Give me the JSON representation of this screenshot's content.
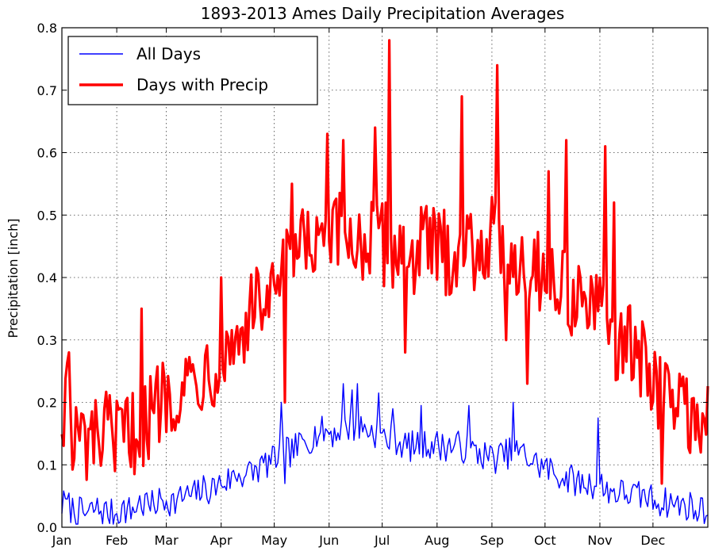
{
  "chart_data": {
    "type": "line",
    "title": "1893-2013 Ames Daily Precipitation Averages",
    "xlabel": "",
    "ylabel": "Precipitation [inch]",
    "xlim": [
      1,
      366
    ],
    "ylim": [
      0,
      0.8
    ],
    "yticks": [
      "0.0",
      "0.1",
      "0.2",
      "0.3",
      "0.4",
      "0.5",
      "0.6",
      "0.7",
      "0.8"
    ],
    "xticks": [
      {
        "label": "Jan",
        "day": 1
      },
      {
        "label": "Feb",
        "day": 32
      },
      {
        "label": "Mar",
        "day": 60
      },
      {
        "label": "Apr",
        "day": 91
      },
      {
        "label": "May",
        "day": 121
      },
      {
        "label": "Jun",
        "day": 152
      },
      {
        "label": "Jul",
        "day": 182
      },
      {
        "label": "Aug",
        "day": 213
      },
      {
        "label": "Sep",
        "day": 244
      },
      {
        "label": "Oct",
        "day": 274
      },
      {
        "label": "Nov",
        "day": 305
      },
      {
        "label": "Dec",
        "day": 335
      }
    ],
    "grid": true,
    "legend_position": "top-left",
    "series": [
      {
        "name": "All Days",
        "color": "#0000ff",
        "line_width": "thin",
        "anchors": [
          [
            1,
            0.035
          ],
          [
            3,
            0.04
          ],
          [
            6,
            0.03
          ],
          [
            10,
            0.025
          ],
          [
            15,
            0.02
          ],
          [
            20,
            0.03
          ],
          [
            25,
            0.025
          ],
          [
            30,
            0.02
          ],
          [
            35,
            0.03
          ],
          [
            40,
            0.025
          ],
          [
            45,
            0.04
          ],
          [
            50,
            0.03
          ],
          [
            55,
            0.04
          ],
          [
            60,
            0.045
          ],
          [
            65,
            0.04
          ],
          [
            70,
            0.05
          ],
          [
            75,
            0.05
          ],
          [
            80,
            0.06
          ],
          [
            85,
            0.06
          ],
          [
            90,
            0.07
          ],
          [
            95,
            0.075
          ],
          [
            100,
            0.085
          ],
          [
            105,
            0.085
          ],
          [
            110,
            0.09
          ],
          [
            115,
            0.1
          ],
          [
            120,
            0.105
          ],
          [
            125,
            0.12
          ],
          [
            130,
            0.12
          ],
          [
            135,
            0.13
          ],
          [
            140,
            0.14
          ],
          [
            145,
            0.15
          ],
          [
            150,
            0.155
          ],
          [
            155,
            0.15
          ],
          [
            160,
            0.16
          ],
          [
            165,
            0.16
          ],
          [
            170,
            0.16
          ],
          [
            175,
            0.155
          ],
          [
            180,
            0.15
          ],
          [
            185,
            0.14
          ],
          [
            190,
            0.14
          ],
          [
            195,
            0.13
          ],
          [
            200,
            0.13
          ],
          [
            205,
            0.13
          ],
          [
            210,
            0.135
          ],
          [
            215,
            0.13
          ],
          [
            220,
            0.13
          ],
          [
            225,
            0.13
          ],
          [
            230,
            0.125
          ],
          [
            235,
            0.12
          ],
          [
            240,
            0.115
          ],
          [
            245,
            0.11
          ],
          [
            250,
            0.115
          ],
          [
            255,
            0.12
          ],
          [
            260,
            0.12
          ],
          [
            265,
            0.11
          ],
          [
            270,
            0.1
          ],
          [
            275,
            0.095
          ],
          [
            280,
            0.085
          ],
          [
            285,
            0.08
          ],
          [
            290,
            0.075
          ],
          [
            295,
            0.07
          ],
          [
            300,
            0.07
          ],
          [
            305,
            0.07
          ],
          [
            310,
            0.06
          ],
          [
            315,
            0.055
          ],
          [
            320,
            0.055
          ],
          [
            325,
            0.05
          ],
          [
            330,
            0.05
          ],
          [
            335,
            0.045
          ],
          [
            340,
            0.04
          ],
          [
            345,
            0.04
          ],
          [
            350,
            0.035
          ],
          [
            355,
            0.035
          ],
          [
            360,
            0.03
          ],
          [
            366,
            0.03
          ]
        ],
        "noise": 0.025,
        "highlights": [
          [
            4,
            0.045
          ],
          [
            49,
            0.055
          ],
          [
            125,
            0.2
          ],
          [
            127,
            0.07
          ],
          [
            160,
            0.23
          ],
          [
            165,
            0.22
          ],
          [
            168,
            0.23
          ],
          [
            180,
            0.215
          ],
          [
            188,
            0.19
          ],
          [
            204,
            0.195
          ],
          [
            231,
            0.195
          ],
          [
            256,
            0.2
          ],
          [
            304,
            0.175
          ],
          [
            307,
            0.05
          ],
          [
            360,
            0.01
          ]
        ]
      },
      {
        "name": "Days with Precip",
        "color": "#ff0000",
        "line_width": "thick",
        "anchors": [
          [
            1,
            0.18
          ],
          [
            3,
            0.2
          ],
          [
            5,
            0.28
          ],
          [
            7,
            0.11
          ],
          [
            10,
            0.15
          ],
          [
            15,
            0.13
          ],
          [
            20,
            0.14
          ],
          [
            25,
            0.15
          ],
          [
            30,
            0.14
          ],
          [
            35,
            0.15
          ],
          [
            40,
            0.15
          ],
          [
            45,
            0.16
          ],
          [
            50,
            0.17
          ],
          [
            55,
            0.2
          ],
          [
            60,
            0.22
          ],
          [
            65,
            0.22
          ],
          [
            70,
            0.23
          ],
          [
            75,
            0.24
          ],
          [
            80,
            0.25
          ],
          [
            85,
            0.26
          ],
          [
            90,
            0.27
          ],
          [
            95,
            0.29
          ],
          [
            100,
            0.3
          ],
          [
            105,
            0.33
          ],
          [
            110,
            0.35
          ],
          [
            115,
            0.37
          ],
          [
            120,
            0.36
          ],
          [
            125,
            0.4
          ],
          [
            130,
            0.42
          ],
          [
            135,
            0.44
          ],
          [
            140,
            0.45
          ],
          [
            145,
            0.44
          ],
          [
            150,
            0.45
          ],
          [
            155,
            0.46
          ],
          [
            160,
            0.47
          ],
          [
            165,
            0.46
          ],
          [
            170,
            0.46
          ],
          [
            175,
            0.45
          ],
          [
            180,
            0.46
          ],
          [
            185,
            0.45
          ],
          [
            190,
            0.45
          ],
          [
            195,
            0.44
          ],
          [
            200,
            0.44
          ],
          [
            205,
            0.45
          ],
          [
            210,
            0.45
          ],
          [
            215,
            0.44
          ],
          [
            220,
            0.44
          ],
          [
            225,
            0.45
          ],
          [
            230,
            0.45
          ],
          [
            235,
            0.45
          ],
          [
            240,
            0.46
          ],
          [
            245,
            0.46
          ],
          [
            250,
            0.45
          ],
          [
            255,
            0.44
          ],
          [
            260,
            0.43
          ],
          [
            265,
            0.42
          ],
          [
            270,
            0.42
          ],
          [
            275,
            0.4
          ],
          [
            280,
            0.39
          ],
          [
            285,
            0.38
          ],
          [
            290,
            0.37
          ],
          [
            295,
            0.37
          ],
          [
            300,
            0.35
          ],
          [
            305,
            0.33
          ],
          [
            310,
            0.32
          ],
          [
            315,
            0.3
          ],
          [
            320,
            0.29
          ],
          [
            325,
            0.28
          ],
          [
            330,
            0.26
          ],
          [
            335,
            0.24
          ],
          [
            340,
            0.22
          ],
          [
            345,
            0.21
          ],
          [
            350,
            0.2
          ],
          [
            355,
            0.19
          ],
          [
            360,
            0.18
          ],
          [
            366,
            0.18
          ]
        ],
        "noise": 0.07,
        "highlights": [
          [
            5,
            0.28
          ],
          [
            8,
            0.11
          ],
          [
            31,
            0.09
          ],
          [
            46,
            0.35
          ],
          [
            91,
            0.4
          ],
          [
            127,
            0.2
          ],
          [
            131,
            0.55
          ],
          [
            151,
            0.63
          ],
          [
            160,
            0.62
          ],
          [
            178,
            0.64
          ],
          [
            186,
            0.78
          ],
          [
            195,
            0.28
          ],
          [
            227,
            0.69
          ],
          [
            247,
            0.74
          ],
          [
            252,
            0.3
          ],
          [
            264,
            0.23
          ],
          [
            276,
            0.57
          ],
          [
            286,
            0.62
          ],
          [
            308,
            0.61
          ],
          [
            313,
            0.52
          ],
          [
            340,
            0.07
          ],
          [
            362,
            0.12
          ]
        ]
      }
    ]
  }
}
